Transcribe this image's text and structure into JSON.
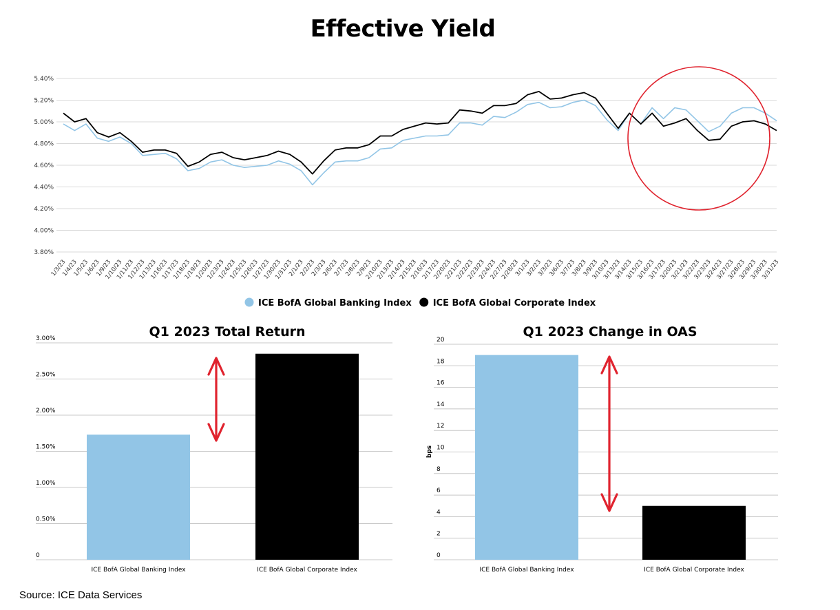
{
  "title": "Effective Yield",
  "source": "Source: ICE Data Services",
  "colors": {
    "banking": "#92c5e6",
    "corporate": "#000000",
    "annotation": "#e0232e"
  },
  "chart_data": [
    {
      "type": "line",
      "title": "Effective Yield",
      "ylim": [
        3.8,
        5.4
      ],
      "yticks": [
        "5.40%",
        "5.20%",
        "5.00%",
        "4.80%",
        "4.60%",
        "4.40%",
        "4.20%",
        "4.00%",
        "3.80%"
      ],
      "grid": true,
      "legend": "bottom",
      "x": [
        "1/3/23",
        "1/4/23",
        "1/5/23",
        "1/6/23",
        "1/9/23",
        "1/10/23",
        "1/11/23",
        "1/12/23",
        "1/13/23",
        "1/16/23",
        "1/17/23",
        "1/18/23",
        "1/19/23",
        "1/20/23",
        "1/23/23",
        "1/24/23",
        "1/25/23",
        "1/26/23",
        "1/27/23",
        "1/30/23",
        "1/31/23",
        "2/1/23",
        "2/2/23",
        "2/3/23",
        "2/6/23",
        "2/7/23",
        "2/8/23",
        "2/9/23",
        "2/10/23",
        "2/13/23",
        "2/14/23",
        "2/15/23",
        "2/16/23",
        "2/17/23",
        "2/20/23",
        "2/21/23",
        "2/22/23",
        "2/23/23",
        "2/24/23",
        "2/27/23",
        "2/28/23",
        "3/1/23",
        "3/2/23",
        "3/3/23",
        "3/6/23",
        "3/7/23",
        "3/8/23",
        "3/9/23",
        "3/10/23",
        "3/13/23",
        "3/14/23",
        "3/15/23",
        "3/16/23",
        "3/17/23",
        "3/20/23",
        "3/21/23",
        "3/22/23",
        "3/23/23",
        "3/24/23",
        "3/27/23",
        "3/28/23",
        "3/29/23",
        "3/30/23",
        "3/31/23"
      ],
      "series": [
        {
          "name": "ICE BofA Global Banking Index",
          "values": [
            4.98,
            4.92,
            4.98,
            4.85,
            4.82,
            4.86,
            4.8,
            4.69,
            4.7,
            4.71,
            4.66,
            4.55,
            4.57,
            4.63,
            4.65,
            4.6,
            4.58,
            4.59,
            4.6,
            4.64,
            4.61,
            4.55,
            4.42,
            4.53,
            4.63,
            4.64,
            4.64,
            4.67,
            4.75,
            4.76,
            4.83,
            4.85,
            4.87,
            4.87,
            4.88,
            4.99,
            4.99,
            4.97,
            5.05,
            5.04,
            5.09,
            5.16,
            5.18,
            5.13,
            5.14,
            5.18,
            5.2,
            5.15,
            5.02,
            4.92,
            5.08,
            4.98,
            5.13,
            5.03,
            5.13,
            5.11,
            5.01,
            4.91,
            4.96,
            5.08,
            5.13,
            5.13,
            5.08,
            5.01
          ]
        },
        {
          "name": "ICE BofA Global Corporate Index",
          "values": [
            5.08,
            5.0,
            5.03,
            4.9,
            4.86,
            4.9,
            4.82,
            4.72,
            4.74,
            4.74,
            4.71,
            4.59,
            4.63,
            4.7,
            4.72,
            4.67,
            4.65,
            4.67,
            4.69,
            4.73,
            4.7,
            4.63,
            4.52,
            4.64,
            4.74,
            4.76,
            4.76,
            4.79,
            4.87,
            4.87,
            4.93,
            4.96,
            4.99,
            4.98,
            4.99,
            5.11,
            5.1,
            5.08,
            5.15,
            5.15,
            5.17,
            5.25,
            5.28,
            5.21,
            5.22,
            5.25,
            5.27,
            5.22,
            5.08,
            4.94,
            5.08,
            4.98,
            5.08,
            4.96,
            4.99,
            5.03,
            4.92,
            4.83,
            4.84,
            4.96,
            5.0,
            5.01,
            4.98,
            4.92
          ]
        }
      ]
    },
    {
      "type": "bar",
      "title": "Q1 2023 Total Return",
      "categories": [
        "ICE BofA Global Banking Index",
        "ICE BofA Global Corporate Index"
      ],
      "values": [
        1.73,
        2.85
      ],
      "ylim": [
        0,
        3.0
      ],
      "yticks": [
        "3.00%",
        "2.50%",
        "2.00%",
        "1.50%",
        "1.00%",
        "0.50%",
        "0"
      ],
      "grid": true
    },
    {
      "type": "bar",
      "title": "Q1 2023 Change in OAS",
      "ylabel": "bps",
      "categories": [
        "ICE BofA Global Banking Index",
        "ICE BofA Global Corporate Index"
      ],
      "values": [
        19,
        5
      ],
      "ylim": [
        0,
        20
      ],
      "yticks": [
        "20",
        "18",
        "16",
        "14",
        "12",
        "10",
        "8",
        "6",
        "4",
        "2",
        "0"
      ],
      "grid": true
    }
  ]
}
